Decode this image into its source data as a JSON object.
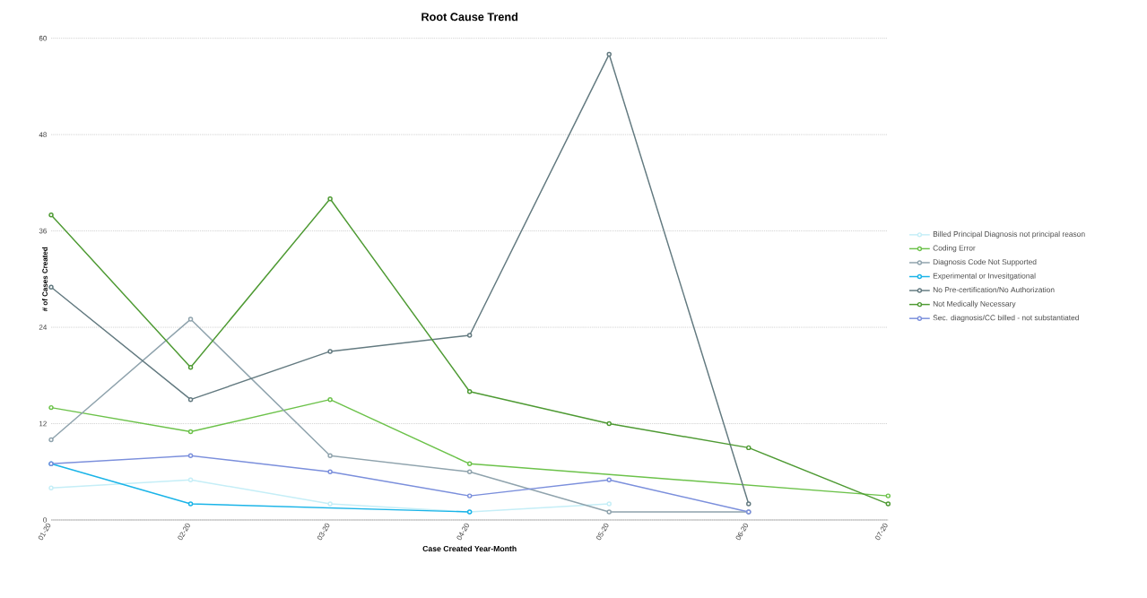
{
  "chart_data": {
    "type": "line",
    "title": "Root Cause Trend",
    "xlabel": "Case Created Year-Month",
    "ylabel": "# of Cases Created",
    "categories": [
      "01-20",
      "02-20",
      "03-20",
      "04-20",
      "05-20",
      "06-20",
      "07-20"
    ],
    "series": [
      {
        "name": "Billed Principal Diagnosis not principal reason",
        "color": "#c5eef7",
        "values": [
          4,
          5,
          2,
          1,
          2,
          null,
          null
        ]
      },
      {
        "name": "Coding Error",
        "color": "#6cc24a",
        "values": [
          14,
          11,
          15,
          7,
          null,
          null,
          3
        ]
      },
      {
        "name": "Diagnosis Code Not Supported",
        "color": "#8fa3ad",
        "values": [
          10,
          25,
          8,
          6,
          1,
          1,
          null
        ]
      },
      {
        "name": "Experimental or Invesitgational",
        "color": "#1ab4e8",
        "values": [
          7,
          2,
          null,
          1,
          null,
          null,
          null
        ]
      },
      {
        "name": "No Pre-certification/No Authorization",
        "color": "#637a80",
        "values": [
          29,
          15,
          21,
          23,
          58,
          2,
          null
        ]
      },
      {
        "name": "Not Medically Necessary",
        "color": "#4e9a33",
        "values": [
          38,
          19,
          40,
          16,
          12,
          9,
          2
        ]
      },
      {
        "name": "Sec. diagnosis/CC billed - not substantiated",
        "color": "#7b8fdc",
        "values": [
          7,
          8,
          6,
          3,
          5,
          1,
          null
        ]
      }
    ],
    "ylim": [
      0,
      60
    ],
    "yticks": [
      0,
      12,
      24,
      36,
      48,
      60
    ],
    "grid": "y",
    "legend": "right",
    "marker": "circle",
    "line_style": "solid"
  }
}
